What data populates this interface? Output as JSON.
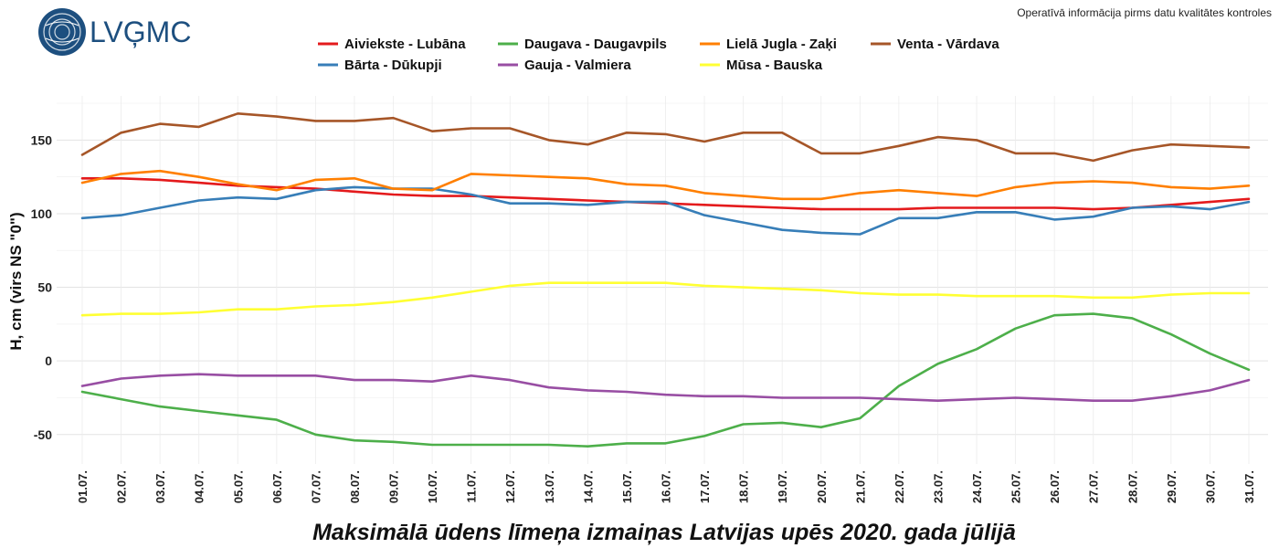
{
  "brand": {
    "name": "LVĢMC",
    "color": "#1d4f7f"
  },
  "notice": "Operatīvā informācija pirms datu kvalitātes kontroles",
  "chart_data": {
    "type": "line",
    "title": "Maksimālā ūdens līmeņa izmaiņas Latvijas upēs 2020. gada jūlijā",
    "xlabel": "",
    "ylabel": "H, cm (virs NS \"0\")",
    "ylim": [
      -70,
      180
    ],
    "yticks": [
      -50,
      0,
      50,
      100,
      150
    ],
    "grid": true,
    "legend_position": "top",
    "categories": [
      "01.07.",
      "02.07.",
      "03.07.",
      "04.07.",
      "05.07.",
      "06.07.",
      "07.07.",
      "08.07.",
      "09.07.",
      "10.07.",
      "11.07.",
      "12.07.",
      "13.07.",
      "14.07.",
      "15.07.",
      "16.07.",
      "17.07.",
      "18.07.",
      "19.07.",
      "20.07.",
      "21.07.",
      "22.07.",
      "23.07.",
      "24.07.",
      "25.07.",
      "26.07.",
      "27.07.",
      "28.07.",
      "29.07.",
      "30.07.",
      "31.07."
    ],
    "series": [
      {
        "name": "Aiviekste - Lubāna",
        "color": "#e41a1c",
        "values": [
          124,
          124,
          123,
          121,
          119,
          118,
          117,
          115,
          113,
          112,
          112,
          111,
          110,
          109,
          108,
          107,
          106,
          105,
          104,
          103,
          103,
          103,
          104,
          104,
          104,
          104,
          103,
          104,
          106,
          108,
          110
        ]
      },
      {
        "name": "Bārta - Dūkupji",
        "color": "#377eb8",
        "values": [
          97,
          99,
          104,
          109,
          111,
          110,
          116,
          118,
          117,
          117,
          113,
          107,
          107,
          106,
          108,
          108,
          99,
          94,
          89,
          87,
          86,
          97,
          97,
          101,
          101,
          96,
          98,
          104,
          105,
          103,
          108
        ]
      },
      {
        "name": "Daugava - Daugavpils",
        "color": "#4daf4a",
        "values": [
          -21,
          -26,
          -31,
          -34,
          -37,
          -40,
          -50,
          -54,
          -55,
          -57,
          -57,
          -57,
          -57,
          -58,
          -56,
          -56,
          -51,
          -43,
          -42,
          -45,
          -39,
          -17,
          -2,
          8,
          22,
          31,
          32,
          29,
          18,
          5,
          -6
        ]
      },
      {
        "name": "Gauja - Valmiera",
        "color": "#984ea3",
        "values": [
          -17,
          -12,
          -10,
          -9,
          -10,
          -10,
          -10,
          -13,
          -13,
          -14,
          -10,
          -13,
          -18,
          -20,
          -21,
          -23,
          -24,
          -24,
          -25,
          -25,
          -25,
          -26,
          -27,
          -26,
          -25,
          -26,
          -27,
          -27,
          -24,
          -20,
          -13
        ]
      },
      {
        "name": "Lielā Jugla - Zaķi",
        "color": "#ff7f00",
        "values": [
          121,
          127,
          129,
          125,
          120,
          116,
          123,
          124,
          117,
          116,
          127,
          126,
          125,
          124,
          120,
          119,
          114,
          112,
          110,
          110,
          114,
          116,
          114,
          112,
          118,
          121,
          122,
          121,
          118,
          117,
          119
        ]
      },
      {
        "name": "Mūsa - Bauska",
        "color": "#ffff33",
        "values": [
          31,
          32,
          32,
          33,
          35,
          35,
          37,
          38,
          40,
          43,
          47,
          51,
          53,
          53,
          53,
          53,
          51,
          50,
          49,
          48,
          46,
          45,
          45,
          44,
          44,
          44,
          43,
          43,
          45,
          46,
          46
        ]
      },
      {
        "name": "Venta - Vārdava",
        "color": "#a65628",
        "values": [
          140,
          155,
          161,
          159,
          168,
          166,
          163,
          163,
          165,
          156,
          158,
          158,
          150,
          147,
          155,
          154,
          149,
          155,
          155,
          141,
          141,
          146,
          152,
          150,
          141,
          141,
          136,
          143,
          147,
          146,
          145
        ]
      }
    ],
    "legend_order": [
      "Aiviekste - Lubāna",
      "Daugava - Daugavpils",
      "Lielā Jugla - Zaķi",
      "Venta - Vārdava",
      "Bārta - Dūkupji",
      "Gauja - Valmiera",
      "Mūsa - Bauska"
    ]
  }
}
